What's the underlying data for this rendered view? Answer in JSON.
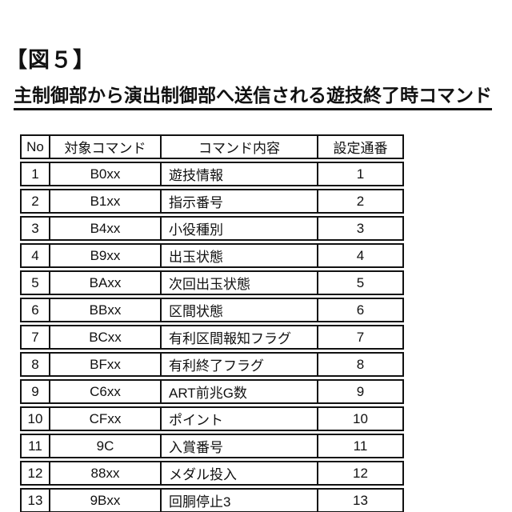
{
  "figure_label": "【図５】",
  "title": "主制御部から演出制御部へ送信される遊技終了時コマンド",
  "colors": {
    "background": "#ffffff",
    "text": "#111111",
    "table_border": "#111111"
  },
  "table": {
    "headers": [
      "No",
      "対象コマンド",
      "コマンド内容",
      "設定通番"
    ],
    "rows": [
      {
        "no": "1",
        "command": "B0xx",
        "content": "遊技情報",
        "serial": "1"
      },
      {
        "no": "2",
        "command": "B1xx",
        "content": "指示番号",
        "serial": "2"
      },
      {
        "no": "3",
        "command": "B4xx",
        "content": "小役種別",
        "serial": "3"
      },
      {
        "no": "4",
        "command": "B9xx",
        "content": "出玉状態",
        "serial": "4"
      },
      {
        "no": "5",
        "command": "BAxx",
        "content": "次回出玉状態",
        "serial": "5"
      },
      {
        "no": "6",
        "command": "BBxx",
        "content": "区間状態",
        "serial": "6"
      },
      {
        "no": "7",
        "command": "BCxx",
        "content": "有利区間報知フラグ",
        "serial": "7"
      },
      {
        "no": "8",
        "command": "BFxx",
        "content": "有利終了フラグ",
        "serial": "8"
      },
      {
        "no": "9",
        "command": "C6xx",
        "content": "ART前兆G数",
        "serial": "9"
      },
      {
        "no": "10",
        "command": "CFxx",
        "content": "ポイント",
        "serial": "10"
      },
      {
        "no": "11",
        "command": "9C",
        "content": "入賞番号",
        "serial": "11"
      },
      {
        "no": "12",
        "command": "88xx",
        "content": "メダル投入",
        "serial": "12"
      },
      {
        "no": "13",
        "command": "9Bxx",
        "content": "回胴停止3",
        "serial": "13"
      }
    ]
  }
}
